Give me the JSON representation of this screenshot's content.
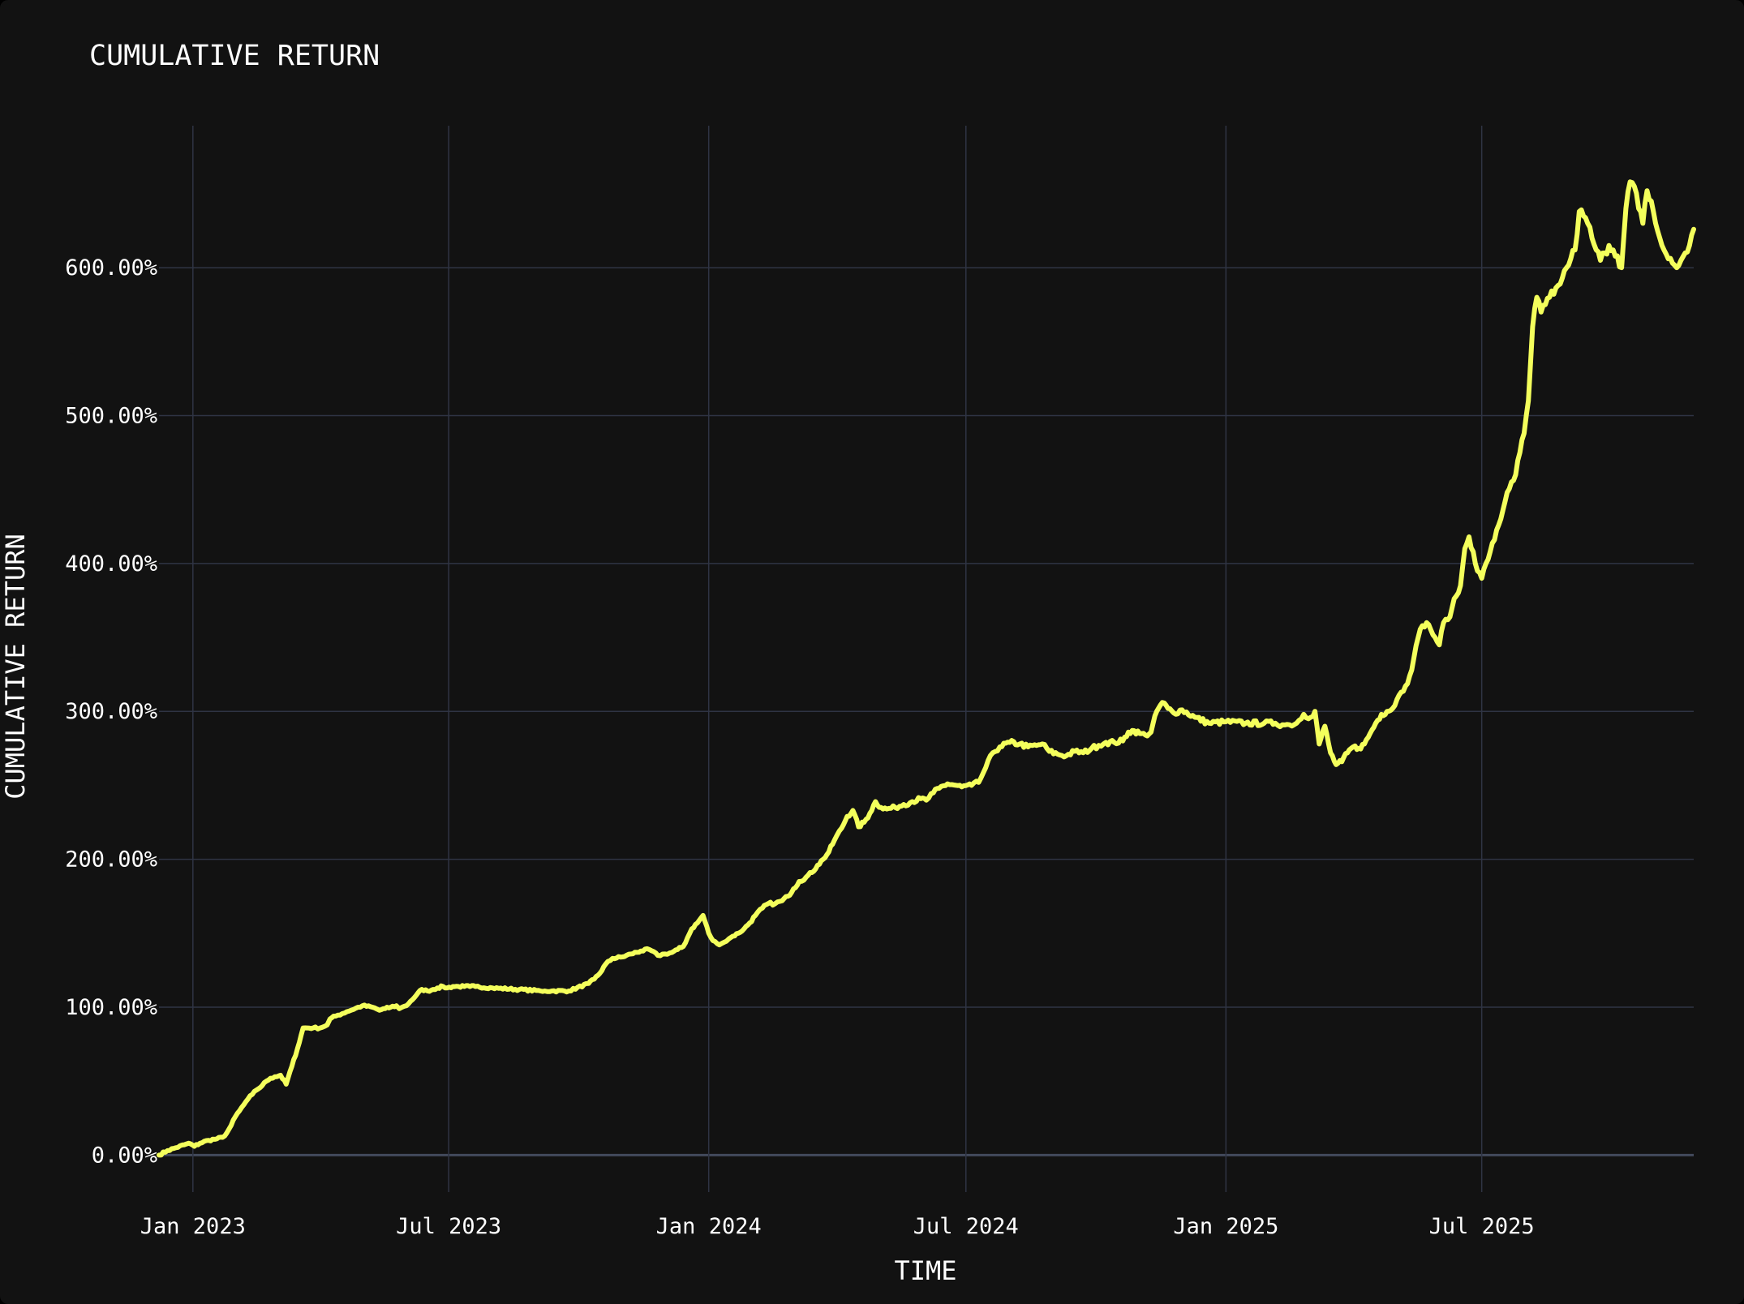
{
  "colors": {
    "background": "#121212",
    "line": "#f4ff5c",
    "grid": "#2f3444",
    "text": "#ffffff"
  },
  "chart_data": {
    "type": "line",
    "title": "CUMULATIVE RETURN",
    "xlabel": "TIME",
    "ylabel": "CUMULATIVE RETURN",
    "x_tick_labels": [
      "Jan 2023",
      "Jul 2023",
      "Jan 2024",
      "Jul 2024",
      "Jan 2025",
      "Jul 2025"
    ],
    "x_tick_dates": [
      "2023-01-01",
      "2023-07-01",
      "2024-01-01",
      "2024-07-01",
      "2025-01-01",
      "2025-07-01"
    ],
    "y_tick_labels": [
      "0.00%",
      "100.00%",
      "200.00%",
      "300.00%",
      "400.00%",
      "500.00%",
      "600.00%"
    ],
    "y_tick_values": [
      0,
      100,
      200,
      300,
      400,
      500,
      600
    ],
    "xlim": [
      "2022-12-08",
      "2025-11-28"
    ],
    "ylim": [
      -25,
      696
    ],
    "grid": true,
    "legend": "none",
    "series": [
      {
        "x": [
          "2022-12-08",
          "2022-12-14",
          "2022-12-20",
          "2022-12-26",
          "2022-12-29",
          "2023-01-02",
          "2023-01-06",
          "2023-01-12",
          "2023-01-18",
          "2023-01-22",
          "2023-01-25",
          "2023-01-28",
          "2023-01-31",
          "2023-02-03",
          "2023-02-06",
          "2023-02-09",
          "2023-02-12",
          "2023-02-15",
          "2023-02-19",
          "2023-02-22",
          "2023-02-25",
          "2023-02-28",
          "2023-03-04",
          "2023-03-08",
          "2023-03-12",
          "2023-03-16",
          "2023-03-20",
          "2023-03-23",
          "2023-03-27",
          "2023-04-01",
          "2023-04-06",
          "2023-04-08",
          "2023-04-12",
          "2023-04-20",
          "2023-05-01",
          "2023-05-08",
          "2023-05-13",
          "2023-05-17",
          "2023-05-21",
          "2023-05-25",
          "2023-05-27",
          "2023-05-29",
          "2023-06-01",
          "2023-06-04",
          "2023-06-08",
          "2023-06-12",
          "2023-06-16",
          "2023-06-20",
          "2023-06-23",
          "2023-06-27",
          "2023-06-30",
          "2023-07-04",
          "2023-07-08",
          "2023-07-12",
          "2023-07-16",
          "2023-07-20",
          "2023-08-01",
          "2023-08-20",
          "2023-09-04",
          "2023-09-07",
          "2023-09-12",
          "2023-09-24",
          "2023-10-08",
          "2023-10-12",
          "2023-10-16",
          "2023-10-20",
          "2023-10-25",
          "2023-11-01",
          "2023-11-07",
          "2023-11-14",
          "2023-11-20",
          "2023-11-26",
          "2023-12-01",
          "2023-12-06",
          "2023-12-10",
          "2023-12-14",
          "2023-12-17",
          "2023-12-20",
          "2023-12-24",
          "2023-12-28",
          "2024-01-01",
          "2024-01-04",
          "2024-01-07",
          "2024-01-10",
          "2024-01-12",
          "2024-01-15",
          "2024-01-18",
          "2024-01-22",
          "2024-01-26",
          "2024-01-30",
          "2024-02-03",
          "2024-02-08",
          "2024-02-12",
          "2024-02-17",
          "2024-02-22",
          "2024-02-26",
          "2024-03-01",
          "2024-03-05",
          "2024-03-10",
          "2024-03-14",
          "2024-03-18",
          "2024-03-22",
          "2024-03-26",
          "2024-03-30",
          "2024-04-04",
          "2024-04-08",
          "2024-04-12",
          "2024-04-16",
          "2024-04-20",
          "2024-04-24",
          "2024-04-28",
          "2024-05-02",
          "2024-05-06",
          "2024-05-12",
          "2024-05-18",
          "2024-05-24",
          "2024-05-30",
          "2024-06-03",
          "2024-06-08",
          "2024-06-12",
          "2024-06-18",
          "2024-06-24",
          "2024-06-28",
          "2024-07-05",
          "2024-07-10",
          "2024-07-15",
          "2024-07-20",
          "2024-07-25",
          "2024-08-01",
          "2024-08-08",
          "2024-08-14",
          "2024-08-20",
          "2024-08-24",
          "2024-08-29",
          "2024-09-04",
          "2024-09-10",
          "2024-09-16",
          "2024-09-22",
          "2024-09-28",
          "2024-10-03",
          "2024-10-08",
          "2024-10-14",
          "2024-10-20",
          "2024-10-24",
          "2024-10-28",
          "2024-11-01",
          "2024-11-05",
          "2024-11-09",
          "2024-11-13",
          "2024-11-17",
          "2024-11-21",
          "2024-11-25",
          "2024-12-01",
          "2024-12-10",
          "2024-12-20",
          "2025-01-01",
          "2025-01-15",
          "2025-01-28",
          "2025-02-05",
          "2025-02-10",
          "2025-02-15",
          "2025-02-20",
          "2025-02-25",
          "2025-03-02",
          "2025-03-05",
          "2025-03-08",
          "2025-03-12",
          "2025-03-16",
          "2025-03-20",
          "2025-03-24",
          "2025-03-28",
          "2025-04-01",
          "2025-04-05",
          "2025-04-09",
          "2025-04-13",
          "2025-04-17",
          "2025-04-21",
          "2025-04-25",
          "2025-04-29",
          "2025-05-02",
          "2025-05-05",
          "2025-05-08",
          "2025-05-11",
          "2025-05-14",
          "2025-05-17",
          "2025-05-20",
          "2025-05-23",
          "2025-05-26",
          "2025-05-29",
          "2025-06-01",
          "2025-06-04",
          "2025-06-07",
          "2025-06-10",
          "2025-06-13",
          "2025-06-16",
          "2025-06-19",
          "2025-06-22",
          "2025-06-25",
          "2025-06-28",
          "2025-07-01",
          "2025-07-04",
          "2025-07-07",
          "2025-07-10",
          "2025-07-13",
          "2025-07-16",
          "2025-07-19",
          "2025-07-22",
          "2025-07-25",
          "2025-07-28",
          "2025-07-31",
          "2025-08-03",
          "2025-08-06",
          "2025-08-09",
          "2025-08-12",
          "2025-08-15",
          "2025-08-18",
          "2025-08-21",
          "2025-08-24",
          "2025-08-27",
          "2025-08-30",
          "2025-09-02",
          "2025-09-05",
          "2025-09-08",
          "2025-09-11",
          "2025-09-14",
          "2025-09-17",
          "2025-09-20",
          "2025-09-23",
          "2025-09-26",
          "2025-09-29",
          "2025-10-02",
          "2025-10-05",
          "2025-10-08",
          "2025-10-11",
          "2025-10-14",
          "2025-10-17",
          "2025-10-20",
          "2025-10-23",
          "2025-10-26",
          "2025-10-29",
          "2025-11-01",
          "2025-11-04",
          "2025-11-07",
          "2025-11-10",
          "2025-11-13",
          "2025-11-16",
          "2025-11-19",
          "2025-11-22",
          "2025-11-25",
          "2025-11-28"
        ],
        "y": [
          0,
          3,
          5,
          7,
          8,
          6,
          8,
          10,
          11,
          12,
          15,
          20,
          26,
          30,
          34,
          38,
          41,
          44,
          47,
          50,
          52,
          53,
          54,
          48,
          60,
          72,
          86,
          86,
          86,
          86,
          88,
          92,
          94,
          97,
          101,
          100,
          98,
          99,
          100,
          101,
          99,
          100,
          101,
          104,
          108,
          112,
          111,
          112,
          113,
          114,
          113,
          114,
          114,
          114,
          114,
          114,
          113,
          112,
          111,
          111,
          111,
          111,
          116,
          119,
          123,
          129,
          133,
          134,
          136,
          138,
          139,
          135,
          136,
          137,
          139,
          141,
          147,
          153,
          157,
          162,
          150,
          145,
          143,
          143,
          144,
          146,
          148,
          150,
          153,
          157,
          162,
          167,
          170,
          170,
          172,
          175,
          180,
          185,
          188,
          191,
          196,
          200,
          205,
          213,
          221,
          229,
          233,
          222,
          225,
          231,
          239,
          235,
          234,
          235,
          237,
          239,
          241,
          240,
          245,
          248,
          251,
          250,
          249,
          250,
          252,
          262,
          272,
          276,
          279,
          278,
          276,
          277,
          278,
          273,
          271,
          270,
          273,
          272,
          275,
          277,
          279,
          279,
          280,
          286,
          287,
          285,
          284,
          286,
          300,
          306,
          302,
          299,
          301,
          296,
          292,
          293,
          292,
          292,
          292,
          291,
          291,
          292,
          298,
          296,
          300,
          278,
          290,
          272,
          264,
          266,
          272,
          276,
          275,
          278,
          285,
          292,
          298,
          300,
          302,
          308,
          313,
          317,
          324,
          336,
          350,
          358,
          360,
          355,
          350,
          345,
          360,
          362,
          370,
          378,
          385,
          410,
          418,
          408,
          395,
          390,
          400,
          408,
          416,
          426,
          436,
          448,
          455,
          460,
          475,
          488,
          510,
          560,
          580,
          570,
          575,
          580,
          582,
          588,
          593,
          600,
          606,
          612,
          638,
          635,
          630,
          620,
          612,
          605,
          610,
          615,
          612,
          608,
          600,
          640,
          658,
          655,
          640,
          630,
          652,
          645,
          630,
          620,
          612,
          606,
          603,
          600,
          605,
          610,
          615,
          626
        ]
      }
    ]
  }
}
